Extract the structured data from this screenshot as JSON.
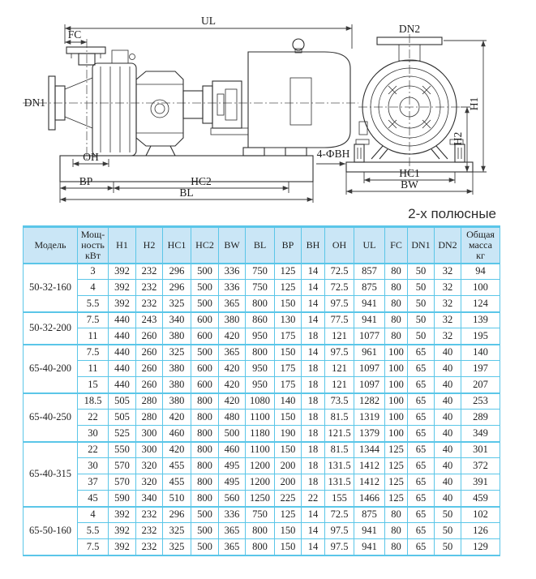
{
  "title": "2-х полюсные",
  "colors": {
    "table_border": "#5bc6e8",
    "header_background": "#cae6f6",
    "text": "#1f1f1f",
    "drawing_line": "#2e2e2e"
  },
  "diagram": {
    "labels": {
      "ul": "UL",
      "fc": "FC",
      "dn1": "DN1",
      "oh": "OH",
      "bp": "BP",
      "hc2": "HC2",
      "bl": "BL",
      "bolt_holes": "4-ФBH",
      "dn2": "DN2",
      "h1": "H1",
      "h2": "H2",
      "hc1": "HC1",
      "bw": "BW"
    }
  },
  "table": {
    "headers": [
      [
        "Модель"
      ],
      [
        "Мощ-",
        "ность",
        "кВт"
      ],
      [
        "H1"
      ],
      [
        "H2"
      ],
      [
        "HC1"
      ],
      [
        "HC2"
      ],
      [
        "BW"
      ],
      [
        "BL"
      ],
      [
        "BP"
      ],
      [
        "BH"
      ],
      [
        "OH"
      ],
      [
        "UL"
      ],
      [
        "FC"
      ],
      [
        "DN1"
      ],
      [
        "DN2"
      ],
      [
        "Общая",
        "масса",
        "кг"
      ]
    ],
    "groups": [
      {
        "model": "50-32-160",
        "rows": [
          {
            "power": "3",
            "values": [
              392,
              232,
              296,
              500,
              336,
              750,
              125,
              14,
              72.5,
              857,
              80,
              50,
              32,
              94
            ]
          },
          {
            "power": "4",
            "values": [
              392,
              232,
              296,
              500,
              336,
              750,
              125,
              14,
              72.5,
              875,
              80,
              50,
              32,
              100
            ]
          },
          {
            "power": "5.5",
            "values": [
              392,
              232,
              325,
              500,
              365,
              800,
              150,
              14,
              97.5,
              941,
              80,
              50,
              32,
              124
            ]
          }
        ]
      },
      {
        "model": "50-32-200",
        "rows": [
          {
            "power": "7.5",
            "values": [
              440,
              243,
              340,
              600,
              380,
              860,
              130,
              14,
              77.5,
              941,
              80,
              50,
              32,
              139
            ]
          },
          {
            "power": "11",
            "values": [
              440,
              260,
              380,
              600,
              420,
              950,
              175,
              18,
              121,
              1077,
              80,
              50,
              32,
              195
            ]
          }
        ]
      },
      {
        "model": "65-40-200",
        "rows": [
          {
            "power": "7.5",
            "values": [
              440,
              260,
              325,
              500,
              365,
              800,
              150,
              14,
              97.5,
              961,
              100,
              65,
              40,
              140
            ]
          },
          {
            "power": "11",
            "values": [
              440,
              260,
              380,
              600,
              420,
              950,
              175,
              18,
              121,
              1097,
              100,
              65,
              40,
              197
            ]
          },
          {
            "power": "15",
            "values": [
              440,
              260,
              380,
              600,
              420,
              950,
              175,
              18,
              121,
              1097,
              100,
              65,
              40,
              207
            ]
          }
        ]
      },
      {
        "model": "65-40-250",
        "rows": [
          {
            "power": "18.5",
            "values": [
              505,
              280,
              380,
              800,
              420,
              1080,
              140,
              18,
              73.5,
              1282,
              100,
              65,
              40,
              253
            ]
          },
          {
            "power": "22",
            "values": [
              505,
              280,
              420,
              800,
              480,
              1100,
              150,
              18,
              81.5,
              1319,
              100,
              65,
              40,
              289
            ]
          },
          {
            "power": "30",
            "values": [
              525,
              300,
              460,
              800,
              500,
              1180,
              190,
              18,
              121.5,
              1379,
              100,
              65,
              40,
              349
            ]
          }
        ]
      },
      {
        "model": "65-40-315",
        "rows": [
          {
            "power": "22",
            "values": [
              550,
              300,
              420,
              800,
              460,
              1100,
              150,
              18,
              81.5,
              1344,
              125,
              65,
              40,
              301
            ]
          },
          {
            "power": "30",
            "values": [
              570,
              320,
              455,
              800,
              495,
              1200,
              200,
              18,
              131.5,
              1412,
              125,
              65,
              40,
              372
            ]
          },
          {
            "power": "37",
            "values": [
              570,
              320,
              455,
              800,
              495,
              1200,
              200,
              18,
              131.5,
              1412,
              125,
              65,
              40,
              391
            ]
          },
          {
            "power": "45",
            "values": [
              590,
              340,
              510,
              800,
              560,
              1250,
              225,
              22,
              155,
              1466,
              125,
              65,
              40,
              459
            ]
          }
        ]
      },
      {
        "model": "65-50-160",
        "rows": [
          {
            "power": "4",
            "values": [
              392,
              232,
              296,
              500,
              336,
              750,
              125,
              14,
              72.5,
              875,
              80,
              65,
              50,
              102
            ]
          },
          {
            "power": "5.5",
            "values": [
              392,
              232,
              325,
              500,
              365,
              800,
              150,
              14,
              97.5,
              941,
              80,
              65,
              50,
              126
            ]
          },
          {
            "power": "7.5",
            "values": [
              392,
              232,
              325,
              500,
              365,
              800,
              150,
              14,
              97.5,
              941,
              80,
              65,
              50,
              129
            ]
          }
        ]
      }
    ]
  }
}
